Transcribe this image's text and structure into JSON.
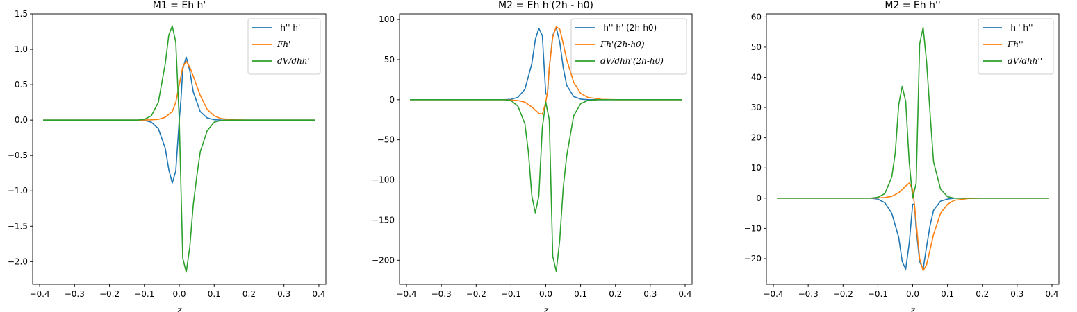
{
  "chart_data": [
    {
      "type": "line",
      "title": "M1 = Eh h'",
      "xlabel": "z",
      "ylabel": "",
      "xlim": [
        -0.42,
        0.42
      ],
      "ylim": [
        -2.32,
        1.5
      ],
      "xticks": [
        -0.4,
        -0.3,
        -0.2,
        -0.1,
        0.0,
        0.1,
        0.2,
        0.3,
        0.4
      ],
      "xtick_labels": [
        "−0.4",
        "−0.3",
        "−0.2",
        "−0.1",
        "0.0",
        "0.1",
        "0.2",
        "0.3",
        "0.4"
      ],
      "yticks": [
        -2.0,
        -1.5,
        -1.0,
        -0.5,
        0.0,
        0.5,
        1.0,
        1.5
      ],
      "ytick_labels": [
        "−2.0",
        "−1.5",
        "−1.0",
        "−0.5",
        "0.0",
        "0.5",
        "1.0",
        "1.5"
      ],
      "legend_position": "top-right",
      "series": [
        {
          "name": "-h'' h'",
          "color": "#1f77b4",
          "legend_italic": false,
          "points": [
            [
              -0.39,
              0
            ],
            [
              -0.12,
              0
            ],
            [
              -0.1,
              -0.005
            ],
            [
              -0.08,
              -0.03
            ],
            [
              -0.06,
              -0.12
            ],
            [
              -0.04,
              -0.4
            ],
            [
              -0.03,
              -0.7
            ],
            [
              -0.02,
              -0.89
            ],
            [
              -0.01,
              -0.72
            ],
            [
              0.0,
              0.0
            ],
            [
              0.005,
              0.3
            ],
            [
              0.01,
              0.72
            ],
            [
              0.02,
              0.89
            ],
            [
              0.03,
              0.7
            ],
            [
              0.04,
              0.4
            ],
            [
              0.06,
              0.12
            ],
            [
              0.08,
              0.03
            ],
            [
              0.1,
              0.005
            ],
            [
              0.12,
              0
            ],
            [
              0.39,
              0
            ]
          ]
        },
        {
          "name": "Fh'",
          "color": "#ff7f0e",
          "legend_italic": true,
          "points": [
            [
              -0.39,
              0
            ],
            [
              -0.12,
              0
            ],
            [
              -0.08,
              0.003
            ],
            [
              -0.06,
              0.01
            ],
            [
              -0.04,
              0.04
            ],
            [
              -0.02,
              0.12
            ],
            [
              -0.01,
              0.25
            ],
            [
              0.0,
              0.5
            ],
            [
              0.01,
              0.75
            ],
            [
              0.02,
              0.83
            ],
            [
              0.03,
              0.75
            ],
            [
              0.04,
              0.62
            ],
            [
              0.06,
              0.35
            ],
            [
              0.08,
              0.15
            ],
            [
              0.1,
              0.06
            ],
            [
              0.12,
              0.02
            ],
            [
              0.16,
              0.003
            ],
            [
              0.2,
              0
            ],
            [
              0.39,
              0
            ]
          ]
        },
        {
          "name": "dV/dhh'",
          "color": "#2ca02c",
          "legend_italic": true,
          "points": [
            [
              -0.39,
              0
            ],
            [
              -0.12,
              0
            ],
            [
              -0.1,
              0.01
            ],
            [
              -0.08,
              0.06
            ],
            [
              -0.06,
              0.25
            ],
            [
              -0.04,
              0.8
            ],
            [
              -0.03,
              1.2
            ],
            [
              -0.02,
              1.33
            ],
            [
              -0.01,
              1.1
            ],
            [
              0.0,
              0.0
            ],
            [
              0.01,
              -1.95
            ],
            [
              0.02,
              -2.15
            ],
            [
              0.03,
              -1.8
            ],
            [
              0.04,
              -1.2
            ],
            [
              0.05,
              -0.8
            ],
            [
              0.06,
              -0.45
            ],
            [
              0.08,
              -0.15
            ],
            [
              0.1,
              -0.03
            ],
            [
              0.12,
              -0.005
            ],
            [
              0.15,
              0
            ],
            [
              0.39,
              0
            ]
          ]
        }
      ]
    },
    {
      "type": "line",
      "title": "M2 = Eh h'(2h - h0)",
      "xlabel": "z",
      "ylabel": "",
      "xlim": [
        -0.42,
        0.42
      ],
      "ylim": [
        -230,
        107
      ],
      "xticks": [
        -0.4,
        -0.3,
        -0.2,
        -0.1,
        0.0,
        0.1,
        0.2,
        0.3,
        0.4
      ],
      "xtick_labels": [
        "−0.4",
        "−0.3",
        "−0.2",
        "−0.1",
        "0.0",
        "0.1",
        "0.2",
        "0.3",
        "0.4"
      ],
      "yticks": [
        -200,
        -150,
        -100,
        -50,
        0,
        50,
        100
      ],
      "ytick_labels": [
        "−200",
        "−150",
        "−100",
        "−50",
        "0",
        "50",
        "100"
      ],
      "legend_position": "top-right",
      "series": [
        {
          "name": "-h'' h' (2h-h0)",
          "color": "#1f77b4",
          "legend_italic": false,
          "points": [
            [
              -0.39,
              0
            ],
            [
              -0.12,
              0
            ],
            [
              -0.1,
              0.5
            ],
            [
              -0.08,
              3
            ],
            [
              -0.06,
              13
            ],
            [
              -0.04,
              45
            ],
            [
              -0.03,
              75
            ],
            [
              -0.02,
              89
            ],
            [
              -0.01,
              80
            ],
            [
              0.0,
              7
            ],
            [
              0.005,
              7
            ],
            [
              0.01,
              40
            ],
            [
              0.02,
              80
            ],
            [
              0.03,
              90
            ],
            [
              0.04,
              72
            ],
            [
              0.05,
              40
            ],
            [
              0.06,
              18
            ],
            [
              0.08,
              4
            ],
            [
              0.1,
              0.8
            ],
            [
              0.12,
              0
            ],
            [
              0.39,
              0
            ]
          ]
        },
        {
          "name": "Fh'(2h-h0)",
          "color": "#ff7f0e",
          "legend_italic": true,
          "points": [
            [
              -0.39,
              0
            ],
            [
              -0.12,
              0
            ],
            [
              -0.08,
              -1
            ],
            [
              -0.06,
              -3
            ],
            [
              -0.04,
              -9
            ],
            [
              -0.02,
              -17
            ],
            [
              -0.01,
              -18
            ],
            [
              0.0,
              -3
            ],
            [
              0.005,
              10
            ],
            [
              0.01,
              40
            ],
            [
              0.02,
              78
            ],
            [
              0.03,
              91
            ],
            [
              0.04,
              88
            ],
            [
              0.05,
              70
            ],
            [
              0.06,
              50
            ],
            [
              0.08,
              22
            ],
            [
              0.1,
              8
            ],
            [
              0.12,
              3
            ],
            [
              0.16,
              0.5
            ],
            [
              0.2,
              0
            ],
            [
              0.39,
              0
            ]
          ]
        },
        {
          "name": "dV/dhh'(2h-h0)",
          "color": "#2ca02c",
          "legend_italic": true,
          "points": [
            [
              -0.39,
              0
            ],
            [
              -0.12,
              0
            ],
            [
              -0.1,
              -1
            ],
            [
              -0.08,
              -8
            ],
            [
              -0.06,
              -30
            ],
            [
              -0.05,
              -65
            ],
            [
              -0.04,
              -120
            ],
            [
              -0.03,
              -141
            ],
            [
              -0.02,
              -120
            ],
            [
              -0.01,
              -35
            ],
            [
              0.0,
              -3
            ],
            [
              0.01,
              -25
            ],
            [
              0.02,
              -195
            ],
            [
              0.03,
              -214
            ],
            [
              0.04,
              -175
            ],
            [
              0.05,
              -110
            ],
            [
              0.06,
              -70
            ],
            [
              0.08,
              -20
            ],
            [
              0.1,
              -5
            ],
            [
              0.12,
              -1
            ],
            [
              0.15,
              0
            ],
            [
              0.39,
              0
            ]
          ]
        }
      ]
    },
    {
      "type": "line",
      "title": "M2 = Eh h''",
      "xlabel": "z",
      "ylabel": "",
      "xlim": [
        -0.42,
        0.42
      ],
      "ylim": [
        -28.5,
        61
      ],
      "xticks": [
        -0.4,
        -0.3,
        -0.2,
        -0.1,
        0.0,
        0.1,
        0.2,
        0.3,
        0.4
      ],
      "xtick_labels": [
        "−0.4",
        "−0.3",
        "−0.2",
        "−0.1",
        "0.0",
        "0.1",
        "0.2",
        "0.3",
        "0.4"
      ],
      "yticks": [
        -20,
        -10,
        0,
        10,
        20,
        30,
        40,
        50,
        60
      ],
      "ytick_labels": [
        "−20",
        "−10",
        "0",
        "10",
        "20",
        "30",
        "40",
        "50",
        "60"
      ],
      "legend_position": "top-right",
      "series": [
        {
          "name": "-h'' h''",
          "color": "#1f77b4",
          "legend_italic": false,
          "points": [
            [
              -0.39,
              0
            ],
            [
              -0.12,
              0
            ],
            [
              -0.1,
              -0.3
            ],
            [
              -0.08,
              -1.5
            ],
            [
              -0.06,
              -5
            ],
            [
              -0.04,
              -13
            ],
            [
              -0.03,
              -21
            ],
            [
              -0.02,
              -23.5
            ],
            [
              -0.01,
              -15
            ],
            [
              0.0,
              -2
            ],
            [
              0.005,
              -2
            ],
            [
              0.01,
              -10
            ],
            [
              0.02,
              -21
            ],
            [
              0.03,
              -23.5
            ],
            [
              0.04,
              -16
            ],
            [
              0.05,
              -9
            ],
            [
              0.06,
              -4
            ],
            [
              0.08,
              -1
            ],
            [
              0.1,
              -0.3
            ],
            [
              0.12,
              0
            ],
            [
              0.39,
              0
            ]
          ]
        },
        {
          "name": "Fh''",
          "color": "#ff7f0e",
          "legend_italic": true,
          "points": [
            [
              -0.39,
              0
            ],
            [
              -0.12,
              0
            ],
            [
              -0.08,
              0.2
            ],
            [
              -0.06,
              0.6
            ],
            [
              -0.04,
              1.8
            ],
            [
              -0.02,
              4
            ],
            [
              -0.01,
              5
            ],
            [
              0.0,
              3
            ],
            [
              0.005,
              -2
            ],
            [
              0.01,
              -8
            ],
            [
              0.02,
              -20
            ],
            [
              0.03,
              -24
            ],
            [
              0.04,
              -22
            ],
            [
              0.05,
              -17
            ],
            [
              0.06,
              -12
            ],
            [
              0.08,
              -5
            ],
            [
              0.1,
              -2
            ],
            [
              0.12,
              -0.7
            ],
            [
              0.16,
              -0.1
            ],
            [
              0.2,
              0
            ],
            [
              0.39,
              0
            ]
          ]
        },
        {
          "name": "dV/dhh''",
          "color": "#2ca02c",
          "legend_italic": true,
          "points": [
            [
              -0.39,
              0
            ],
            [
              -0.12,
              0
            ],
            [
              -0.1,
              0.3
            ],
            [
              -0.08,
              1.5
            ],
            [
              -0.06,
              7
            ],
            [
              -0.05,
              15
            ],
            [
              -0.04,
              31
            ],
            [
              -0.03,
              37
            ],
            [
              -0.02,
              32
            ],
            [
              -0.01,
              12
            ],
            [
              0.0,
              0
            ],
            [
              0.01,
              5
            ],
            [
              0.02,
              51
            ],
            [
              0.03,
              56.5
            ],
            [
              0.04,
              45
            ],
            [
              0.05,
              28
            ],
            [
              0.06,
              12
            ],
            [
              0.08,
              3
            ],
            [
              0.1,
              0.5
            ],
            [
              0.12,
              0
            ],
            [
              0.39,
              0
            ]
          ]
        }
      ]
    }
  ]
}
